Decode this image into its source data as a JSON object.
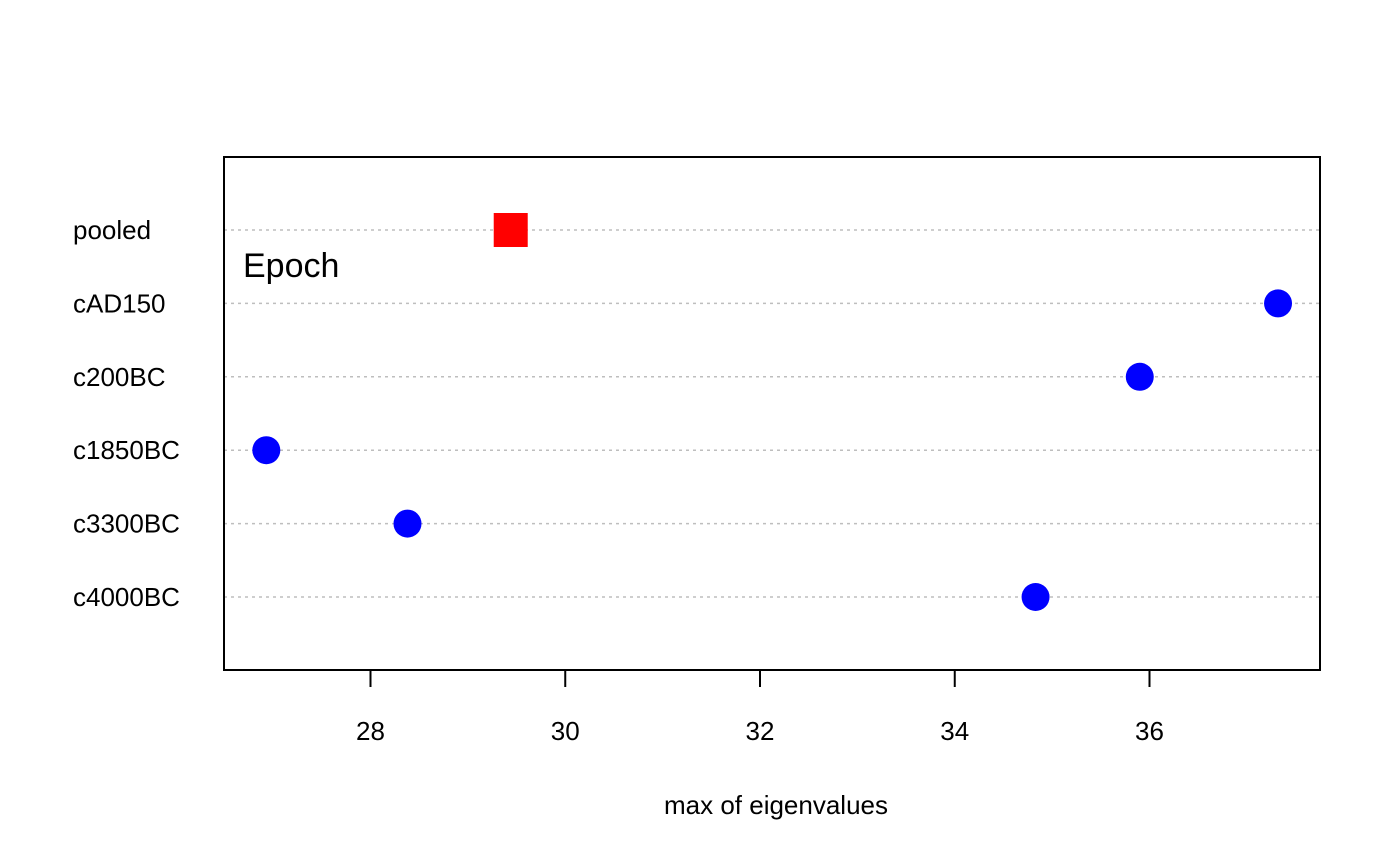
{
  "chart_data": {
    "type": "scatter",
    "title": "",
    "xlabel": "max of eigenvalues",
    "ylabel": "",
    "annotation": "Epoch",
    "xlim": [
      26.55,
      37.8
    ],
    "xticks": [
      28,
      30,
      32,
      34,
      36
    ],
    "categories": [
      "c4000BC",
      "c3300BC",
      "c1850BC",
      "c200BC",
      "cAD150",
      "pooled"
    ],
    "points": [
      {
        "category": "c4000BC",
        "value": 34.83,
        "group": "epoch"
      },
      {
        "category": "c3300BC",
        "value": 28.38,
        "group": "epoch"
      },
      {
        "category": "c1850BC",
        "value": 26.93,
        "group": "epoch"
      },
      {
        "category": "c200BC",
        "value": 35.9,
        "group": "epoch"
      },
      {
        "category": "cAD150",
        "value": 37.32,
        "group": "epoch"
      },
      {
        "category": "pooled",
        "value": 29.44,
        "group": "pooled"
      }
    ],
    "markers": {
      "epoch": {
        "shape": "circle",
        "color": "#0000ff"
      },
      "pooled": {
        "shape": "square",
        "color": "#ff0000"
      }
    },
    "grid": true,
    "grid_color": "#bebebe"
  }
}
